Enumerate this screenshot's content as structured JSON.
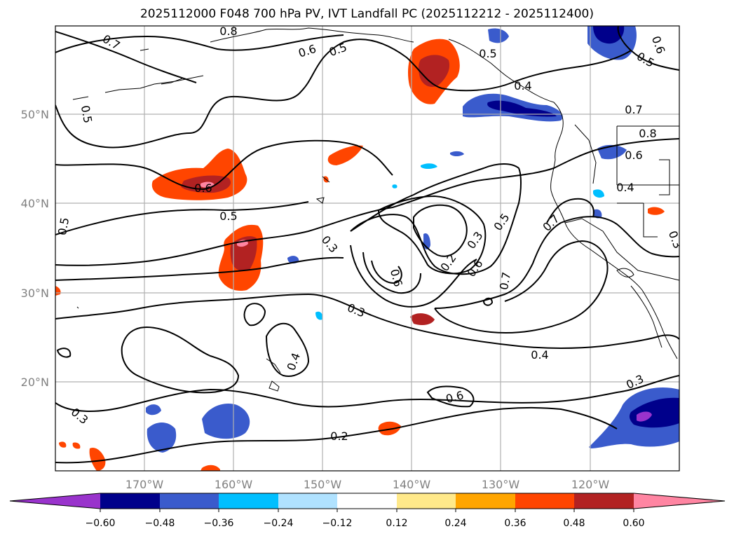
{
  "title": "2025112000 F048 700 hPa PV, IVT Landfall PC (2025112212 - 2025112400)",
  "lat_ticks": [
    "50°N",
    "40°N",
    "30°N",
    "20°N"
  ],
  "lon_ticks": [
    "170°W",
    "160°W",
    "150°W",
    "140°W",
    "130°W",
    "120°W"
  ],
  "contour_labels": [
    "0.8",
    "0.7",
    "0.6",
    "0.5",
    "0.5",
    "0.4",
    "0.5",
    "0.6",
    "0.5",
    "0.6",
    "0.5",
    "0.5",
    "0.3",
    "0.2",
    "0.3",
    "0.6",
    "0.5",
    "0.6",
    "0.7",
    "0.7",
    "0.3",
    "0.4",
    "0.4",
    "0.2",
    "0.3",
    "0.3",
    "0.6",
    "0.7",
    "0.8",
    "0.6",
    "0.4",
    "0.3"
  ],
  "colorbar": {
    "ticks": [
      "−0.60",
      "−0.48",
      "−0.36",
      "−0.24",
      "−0.12",
      "0.12",
      "0.24",
      "0.36",
      "0.48",
      "0.60"
    ],
    "colors": [
      "#9933cc",
      "#00008b",
      "#3a5bcc",
      "#00bfff",
      "#b0e2ff",
      "#ffffff",
      "#ffe98a",
      "#ffa500",
      "#ff4500",
      "#b22222",
      "#ff85a2",
      "#ff85a2"
    ]
  }
}
